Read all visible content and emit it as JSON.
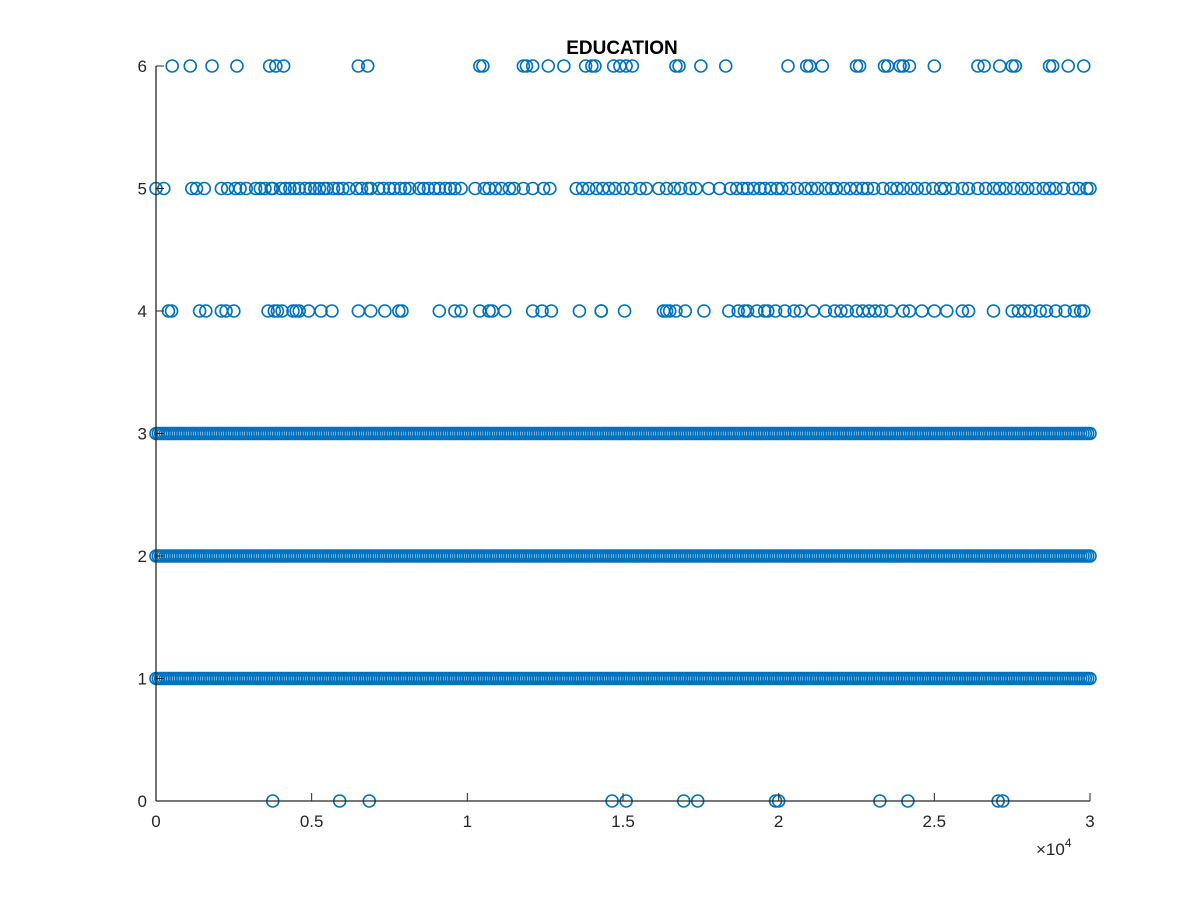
{
  "chart_data": {
    "type": "scatter",
    "title": "EDUCATION",
    "xlabel": "",
    "ylabel": "",
    "xlim": [
      0,
      30000
    ],
    "ylim": [
      0,
      6
    ],
    "x_tick_values": [
      0,
      5000,
      10000,
      15000,
      20000,
      25000,
      30000
    ],
    "x_tick_labels": [
      "0",
      "0.5",
      "1",
      "1.5",
      "2",
      "2.5",
      "3"
    ],
    "x_exponent_label": "×10",
    "x_exponent_power": "4",
    "y_tick_values": [
      0,
      1,
      2,
      3,
      4,
      5,
      6
    ],
    "y_tick_labels": [
      "0",
      "1",
      "2",
      "3",
      "4",
      "5",
      "6"
    ],
    "grid": false,
    "marker": "circle-open",
    "marker_color": "#0072BD",
    "dense_bands": [
      {
        "y": 1,
        "x_range": [
          0,
          30000
        ]
      },
      {
        "y": 2,
        "x_range": [
          0,
          30000
        ]
      },
      {
        "y": 3,
        "x_range": [
          0,
          30000
        ]
      }
    ],
    "points": [
      {
        "y": 6,
        "x": [
          520,
          1100,
          1800,
          2600,
          3650,
          3850,
          4100,
          6500,
          6800,
          10400,
          10500,
          11800,
          11900,
          12100,
          12600,
          13100,
          13800,
          14000,
          14100,
          14700,
          14900,
          15100,
          15300,
          16700,
          16800,
          17500,
          18300,
          20300,
          20900,
          21000,
          21400,
          22500,
          22600,
          23400,
          23500,
          23900,
          24000,
          24200,
          25000,
          26400,
          26600,
          27100,
          27500,
          27600,
          28700,
          28800,
          29300,
          29800
        ]
      },
      {
        "y": 5,
        "x": [
          0,
          250,
          1150,
          1300,
          1550,
          2100,
          2300,
          2550,
          2700,
          2900,
          3200,
          3350,
          3500,
          3700,
          3750,
          4000,
          4150,
          4300,
          4450,
          4600,
          4800,
          4950,
          5100,
          5250,
          5400,
          5500,
          5700,
          5850,
          6000,
          6200,
          6450,
          6600,
          6800,
          6900,
          7150,
          7300,
          7500,
          7650,
          7850,
          8000,
          8150,
          8450,
          8600,
          8750,
          8950,
          9100,
          9300,
          9450,
          9600,
          9800,
          10250,
          10550,
          10700,
          10900,
          11100,
          11350,
          11500,
          11800,
          12100,
          12450,
          12650,
          13500,
          13700,
          13900,
          14150,
          14350,
          14550,
          14750,
          15000,
          15250,
          15550,
          15750,
          16150,
          16400,
          16650,
          16850,
          17150,
          17350,
          17750,
          18100,
          18450,
          18650,
          18850,
          19000,
          19200,
          19400,
          19550,
          19750,
          19950,
          20100,
          20350,
          20600,
          20850,
          21050,
          21250,
          21500,
          21700,
          21850,
          22100,
          22300,
          22500,
          22700,
          22850,
          23050,
          23350,
          23600,
          23800,
          24000,
          24250,
          24450,
          24700,
          24950,
          25200,
          25350,
          25600,
          25900,
          26100,
          26400,
          26650,
          26900,
          27100,
          27300,
          27550,
          27800,
          28000,
          28250,
          28500,
          28700,
          28900,
          29150,
          29450,
          29650,
          29900,
          30000
        ]
      },
      {
        "y": 4,
        "x": [
          400,
          500,
          1400,
          1600,
          2100,
          2250,
          2500,
          3600,
          3800,
          3900,
          4050,
          4400,
          4500,
          4600,
          4900,
          5300,
          5650,
          6500,
          6900,
          7350,
          7800,
          7900,
          9100,
          9600,
          9800,
          10400,
          10700,
          10800,
          11200,
          12100,
          12400,
          12700,
          13600,
          14300,
          14300,
          15050,
          16300,
          16400,
          16500,
          16700,
          17000,
          17600,
          18400,
          18700,
          18900,
          19000,
          19300,
          19550,
          19650,
          19900,
          20200,
          20500,
          20700,
          21100,
          21500,
          21800,
          22000,
          22200,
          22500,
          22700,
          22900,
          23100,
          23300,
          23600,
          24000,
          24200,
          24600,
          25000,
          25400,
          25900,
          26100,
          26900,
          27500,
          27700,
          27900,
          28100,
          28400,
          28600,
          28900,
          29200,
          29500,
          29700,
          29800
        ]
      },
      {
        "y": 0,
        "x": [
          3750,
          5900,
          6850,
          14650,
          15100,
          16950,
          17400,
          19900,
          20000,
          23250,
          24150,
          27050,
          27200
        ]
      }
    ]
  }
}
